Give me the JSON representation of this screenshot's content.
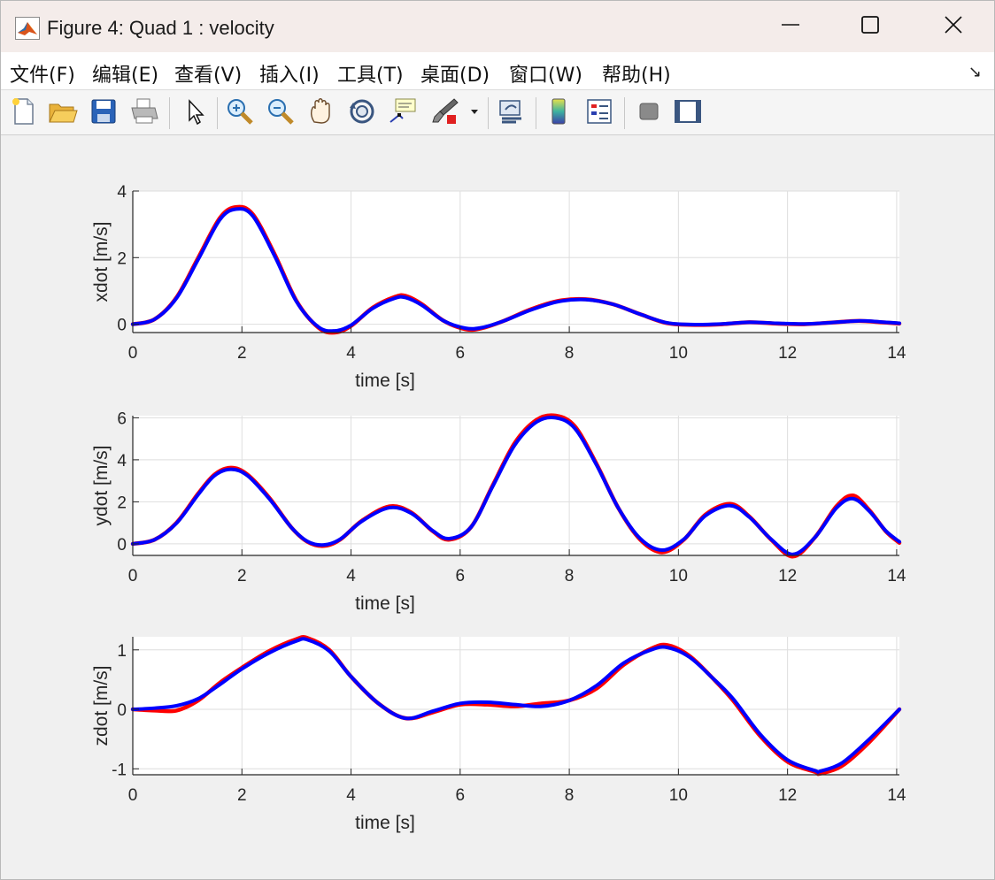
{
  "window": {
    "title": "Figure 4: Quad 1 : velocity",
    "minimize_icon": "minimize-icon",
    "maximize_icon": "maximize-icon",
    "close_icon": "close-icon"
  },
  "menu": {
    "items": [
      {
        "label": "文件(F)"
      },
      {
        "label": "编辑(E)"
      },
      {
        "label": "查看(V)"
      },
      {
        "label": "插入(I)"
      },
      {
        "label": "工具(T)"
      },
      {
        "label": "桌面(D)"
      },
      {
        "label": "窗口(W)"
      },
      {
        "label": "帮助(H)"
      }
    ]
  },
  "toolbar": {
    "icons": [
      "new-figure-icon",
      "open-file-icon",
      "save-icon",
      "print-icon",
      "select-arrow-icon",
      "zoom-in-icon",
      "zoom-out-icon",
      "pan-hand-icon",
      "rotate-3d-icon",
      "data-cursor-icon",
      "brush-icon",
      "brush-dropdown-icon",
      "link-plot-icon",
      "colorbar-icon",
      "legend-icon",
      "hide-plot-tools-icon",
      "show-plot-tools-icon"
    ]
  },
  "colors": {
    "series_a": "#ff0000",
    "series_b": "#0000ff",
    "axes_bg": "#ffffff",
    "figure_bg": "#f0f0f0"
  },
  "chart_data": [
    {
      "type": "line",
      "xlabel": "time [s]",
      "ylabel": "xdot [m/s]",
      "xlim": [
        0,
        14.05
      ],
      "ylim": [
        -0.25,
        4
      ],
      "xticks": [
        0,
        2,
        4,
        6,
        8,
        10,
        12,
        14
      ],
      "yticks": [
        0,
        2,
        4
      ],
      "grid": true,
      "series": [
        {
          "color": "#ff0000",
          "x": [
            0,
            0.4,
            0.8,
            1.2,
            1.6,
            1.9,
            2.2,
            2.6,
            3.0,
            3.4,
            3.7,
            4.0,
            4.4,
            4.8,
            5.0,
            5.3,
            5.7,
            6.1,
            6.4,
            6.8,
            7.3,
            7.8,
            8.3,
            8.8,
            9.3,
            9.8,
            10.3,
            10.8,
            11.3,
            11.8,
            12.3,
            12.8,
            13.3,
            13.7,
            14.05
          ],
          "y": [
            0,
            0.15,
            0.8,
            2.0,
            3.2,
            3.52,
            3.3,
            2.1,
            0.7,
            -0.1,
            -0.25,
            -0.05,
            0.5,
            0.82,
            0.85,
            0.6,
            0.1,
            -0.15,
            -0.12,
            0.1,
            0.45,
            0.7,
            0.75,
            0.6,
            0.3,
            0.03,
            -0.02,
            0.0,
            0.06,
            0.02,
            0.0,
            0.05,
            0.1,
            0.06,
            0.02
          ]
        },
        {
          "color": "#0000ff",
          "x": [
            0,
            0.4,
            0.8,
            1.2,
            1.6,
            1.9,
            2.2,
            2.6,
            3.0,
            3.4,
            3.7,
            4.0,
            4.4,
            4.8,
            5.0,
            5.3,
            5.7,
            6.1,
            6.4,
            6.8,
            7.3,
            7.8,
            8.3,
            8.8,
            9.3,
            9.8,
            10.3,
            10.8,
            11.3,
            11.8,
            12.3,
            12.8,
            13.3,
            13.7,
            14.05
          ],
          "y": [
            0,
            0.15,
            0.78,
            1.95,
            3.15,
            3.46,
            3.25,
            2.05,
            0.68,
            -0.08,
            -0.2,
            -0.03,
            0.48,
            0.78,
            0.8,
            0.57,
            0.1,
            -0.12,
            -0.1,
            0.1,
            0.43,
            0.68,
            0.74,
            0.6,
            0.3,
            0.04,
            -0.01,
            0.01,
            0.06,
            0.03,
            0.01,
            0.05,
            0.1,
            0.07,
            0.03
          ]
        }
      ]
    },
    {
      "type": "line",
      "xlabel": "time [s]",
      "ylabel": "ydot [m/s]",
      "xlim": [
        0,
        14.05
      ],
      "ylim": [
        -0.55,
        6.1
      ],
      "xticks": [
        0,
        2,
        4,
        6,
        8,
        10,
        12,
        14
      ],
      "yticks": [
        0,
        2,
        4,
        6
      ],
      "grid": true,
      "series": [
        {
          "color": "#ff0000",
          "x": [
            0,
            0.4,
            0.8,
            1.2,
            1.5,
            1.8,
            2.1,
            2.5,
            2.9,
            3.2,
            3.5,
            3.8,
            4.2,
            4.7,
            5.1,
            5.5,
            5.8,
            6.2,
            6.6,
            7.0,
            7.4,
            7.75,
            8.1,
            8.5,
            8.9,
            9.3,
            9.7,
            10.1,
            10.5,
            10.95,
            11.3,
            11.7,
            12.1,
            12.5,
            12.9,
            13.2,
            13.5,
            13.8,
            14.05
          ],
          "y": [
            0,
            0.2,
            1.0,
            2.4,
            3.3,
            3.62,
            3.3,
            2.2,
            0.8,
            0.1,
            -0.1,
            0.2,
            1.1,
            1.78,
            1.5,
            0.6,
            0.2,
            0.8,
            2.8,
            4.8,
            5.9,
            6.1,
            5.6,
            3.8,
            1.7,
            0.2,
            -0.4,
            0.2,
            1.4,
            1.9,
            1.3,
            0.2,
            -0.6,
            0.3,
            1.8,
            2.3,
            1.6,
            0.6,
            0.05
          ]
        },
        {
          "color": "#0000ff",
          "x": [
            0,
            0.4,
            0.8,
            1.2,
            1.5,
            1.8,
            2.1,
            2.5,
            2.9,
            3.2,
            3.5,
            3.8,
            4.2,
            4.7,
            5.1,
            5.5,
            5.8,
            6.2,
            6.6,
            7.0,
            7.4,
            7.75,
            8.1,
            8.5,
            8.9,
            9.3,
            9.7,
            10.1,
            10.5,
            10.95,
            11.3,
            11.7,
            12.1,
            12.5,
            12.9,
            13.2,
            13.5,
            13.8,
            14.05
          ],
          "y": [
            0,
            0.2,
            0.98,
            2.35,
            3.25,
            3.55,
            3.25,
            2.15,
            0.8,
            0.12,
            -0.05,
            0.22,
            1.08,
            1.72,
            1.46,
            0.62,
            0.25,
            0.8,
            2.75,
            4.7,
            5.8,
            6.0,
            5.5,
            3.75,
            1.7,
            0.25,
            -0.3,
            0.22,
            1.35,
            1.82,
            1.27,
            0.22,
            -0.5,
            0.3,
            1.72,
            2.15,
            1.55,
            0.62,
            0.1
          ]
        }
      ]
    },
    {
      "type": "line",
      "xlabel": "time [s]",
      "ylabel": "zdot [m/s]",
      "xlim": [
        0,
        14.05
      ],
      "ylim": [
        -1.1,
        1.22
      ],
      "xticks": [
        0,
        2,
        4,
        6,
        8,
        10,
        12,
        14
      ],
      "yticks": [
        -1,
        0,
        1
      ],
      "grid": true,
      "series": [
        {
          "color": "#ff0000",
          "x": [
            0,
            0.4,
            0.8,
            1.2,
            1.6,
            2.0,
            2.5,
            3.0,
            3.2,
            3.6,
            4.0,
            4.5,
            5.0,
            5.5,
            6.0,
            6.5,
            7.0,
            7.5,
            8.0,
            8.5,
            9.0,
            9.5,
            9.8,
            10.2,
            10.6,
            11.0,
            11.5,
            12.0,
            12.5,
            12.6,
            13.0,
            13.5,
            14.05
          ],
          "y": [
            0,
            -0.02,
            -0.02,
            0.15,
            0.45,
            0.7,
            0.98,
            1.18,
            1.2,
            1.0,
            0.55,
            0.1,
            -0.15,
            -0.05,
            0.08,
            0.08,
            0.05,
            0.1,
            0.15,
            0.35,
            0.75,
            1.02,
            1.08,
            0.9,
            0.55,
            0.15,
            -0.45,
            -0.88,
            -1.05,
            -1.08,
            -0.95,
            -0.55,
            0.0
          ]
        },
        {
          "color": "#0000ff",
          "x": [
            0,
            0.4,
            0.8,
            1.2,
            1.6,
            2.0,
            2.5,
            3.0,
            3.2,
            3.6,
            4.0,
            4.5,
            5.0,
            5.5,
            6.0,
            6.5,
            7.0,
            7.5,
            8.0,
            8.5,
            9.0,
            9.5,
            9.8,
            10.2,
            10.6,
            11.0,
            11.5,
            12.0,
            12.5,
            12.6,
            13.0,
            13.5,
            14.05
          ],
          "y": [
            0,
            0.02,
            0.06,
            0.18,
            0.42,
            0.68,
            0.95,
            1.15,
            1.17,
            0.98,
            0.55,
            0.1,
            -0.15,
            -0.03,
            0.1,
            0.12,
            0.08,
            0.05,
            0.15,
            0.4,
            0.78,
            1.0,
            1.04,
            0.88,
            0.55,
            0.18,
            -0.42,
            -0.85,
            -1.03,
            -1.04,
            -0.9,
            -0.5,
            0.0
          ]
        }
      ]
    }
  ]
}
